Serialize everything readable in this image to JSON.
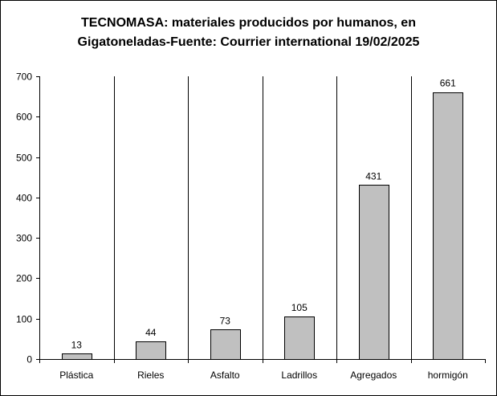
{
  "chart_data": {
    "type": "bar",
    "title": "TECNOMASA: materiales producidos por humanos, en\nGigatoneladas-Fuente: Courrier international 19/02/2025",
    "categories": [
      "Plástica",
      "Rieles",
      "Asfalto",
      "Ladrillos",
      "Agregados",
      "hormigón"
    ],
    "values": [
      13,
      44,
      73,
      105,
      431,
      661
    ],
    "data_labels": [
      "13",
      "44",
      "73",
      "105",
      "431",
      "661"
    ],
    "ylim": [
      0,
      700
    ],
    "yticks": [
      "0",
      "100",
      "200",
      "300",
      "400",
      "500",
      "600",
      "700"
    ],
    "xlabel": "",
    "ylabel": "",
    "grid": "vertical separators between categories",
    "legend": "none",
    "colors": {
      "bar_fill": "#c0c0c0",
      "bar_stroke": "#000000",
      "axis": "#000000",
      "background": "#ffffff"
    }
  }
}
